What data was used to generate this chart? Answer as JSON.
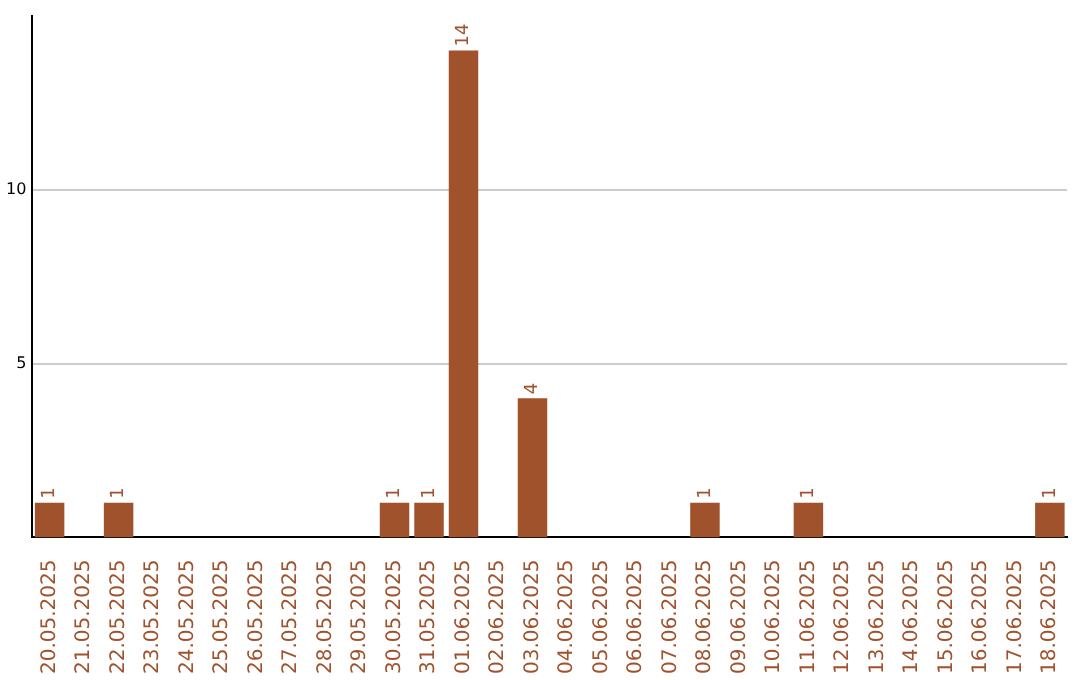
{
  "chart_data": {
    "type": "bar",
    "categories": [
      "20.05.2025",
      "21.05.2025",
      "22.05.2025",
      "23.05.2025",
      "24.05.2025",
      "25.05.2025",
      "26.05.2025",
      "27.05.2025",
      "28.05.2025",
      "29.05.2025",
      "30.05.2025",
      "31.05.2025",
      "01.06.2025",
      "02.06.2025",
      "03.06.2025",
      "04.06.2025",
      "05.06.2025",
      "06.06.2025",
      "07.06.2025",
      "08.06.2025",
      "09.06.2025",
      "10.06.2025",
      "11.06.2025",
      "12.06.2025",
      "13.06.2025",
      "14.06.2025",
      "15.06.2025",
      "16.06.2025",
      "17.06.2025",
      "18.06.2025"
    ],
    "values": [
      1,
      0,
      1,
      0,
      0,
      0,
      0,
      0,
      0,
      0,
      1,
      1,
      14,
      0,
      4,
      0,
      0,
      0,
      0,
      1,
      0,
      0,
      1,
      0,
      0,
      0,
      0,
      0,
      0,
      1
    ],
    "value_labels": [
      "1",
      null,
      "1",
      null,
      null,
      null,
      null,
      null,
      null,
      null,
      "1",
      "1",
      "14",
      null,
      "4",
      null,
      null,
      null,
      null,
      "1",
      null,
      null,
      "1",
      null,
      null,
      null,
      null,
      null,
      null,
      "1"
    ],
    "color": "#a0522d",
    "ylim": [
      0,
      15
    ],
    "yticks": [
      5,
      10
    ],
    "grid": "y",
    "legend": false
  }
}
